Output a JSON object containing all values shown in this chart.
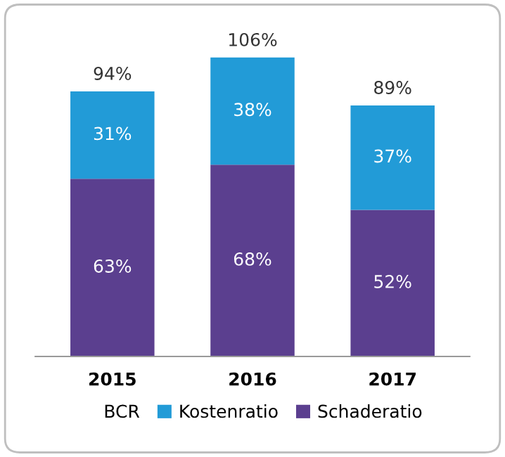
{
  "chart_data": {
    "type": "bar",
    "stacked": true,
    "categories": [
      "2015",
      "2016",
      "2017"
    ],
    "series": [
      {
        "name": "Schaderatio",
        "color": "#5b3f8f",
        "values": [
          63,
          68,
          52
        ],
        "value_labels": [
          "63%",
          "68%",
          "52%"
        ]
      },
      {
        "name": "Kostenratio",
        "color": "#229bd7",
        "values": [
          31,
          38,
          37
        ],
        "value_labels": [
          "31%",
          "38%",
          "37%"
        ]
      }
    ],
    "totals": [
      "94%",
      "106%",
      "89%"
    ],
    "legend_title": "BCR",
    "legend": "bottom",
    "grid": false
  }
}
